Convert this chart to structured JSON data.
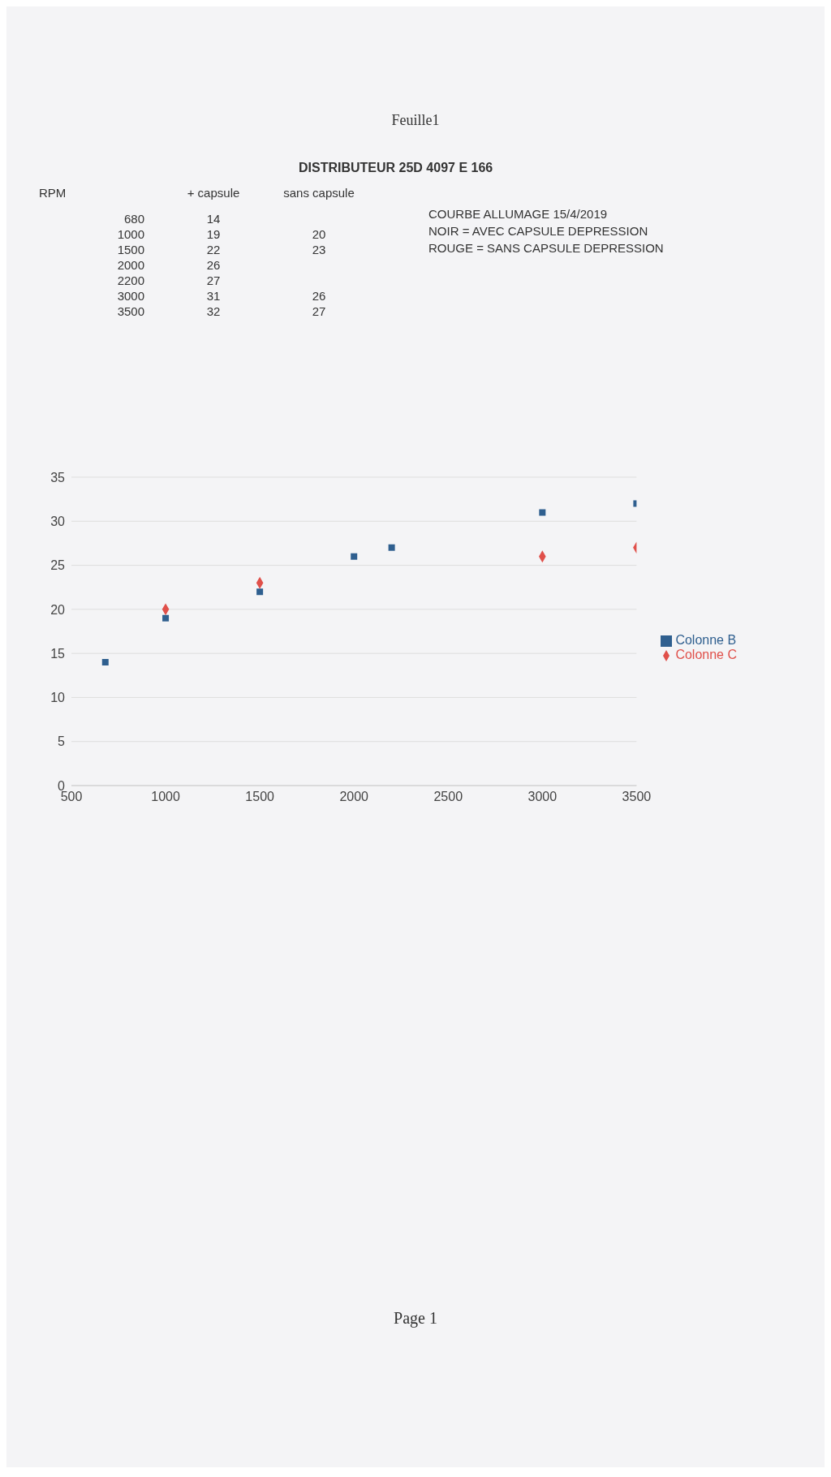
{
  "chart_data": [
    {
      "type": "heatmap",
      "title": "DISTRIBUTEUR 25D 4097 E 166",
      "ylabel": "RPM",
      "annotations": [
        "Feuille1",
        "COURBE ALLUMAGE 15/4/2019",
        "NOIR = AVEC CAPSULE DEPRESSION",
        "ROUGE = SANS CAPSULE DEPRESSION"
      ],
      "categories": [
        "+ capsule",
        "sans capsule"
      ],
      "y_categories": [
        "680",
        "1000",
        "1500",
        "2000",
        "2200",
        "3000",
        "3500"
      ],
      "cells": [
        [
          14,
          null
        ],
        [
          19,
          20
        ],
        [
          22,
          23
        ],
        [
          26,
          null
        ],
        [
          27,
          null
        ],
        [
          31,
          26
        ],
        [
          32,
          27
        ]
      ],
      "data_labels": true
    },
    {
      "type": "scatter",
      "annotations": [
        "Page 1"
      ],
      "series": [
        {
          "name": "Colonne B",
          "color": "#2f5f8f",
          "marker": "square",
          "x": [
            680,
            1000,
            1500,
            2000,
            2200,
            3000,
            3500
          ],
          "values": [
            14,
            19,
            22,
            26,
            27,
            31,
            32
          ]
        },
        {
          "name": "Colonne C",
          "color": "#e0504a",
          "marker": "diamond",
          "x": [
            1000,
            1500,
            3000,
            3500
          ],
          "values": [
            20,
            23,
            26,
            27
          ]
        }
      ],
      "xlim": [
        500,
        3500
      ],
      "xticks": [
        500,
        1000,
        1500,
        2000,
        2500,
        3000,
        3500
      ],
      "ylim": [
        0,
        35
      ],
      "yticks": [
        0,
        5,
        10,
        15,
        20,
        25,
        30,
        35
      ],
      "grid": "y",
      "legend": "right"
    }
  ]
}
